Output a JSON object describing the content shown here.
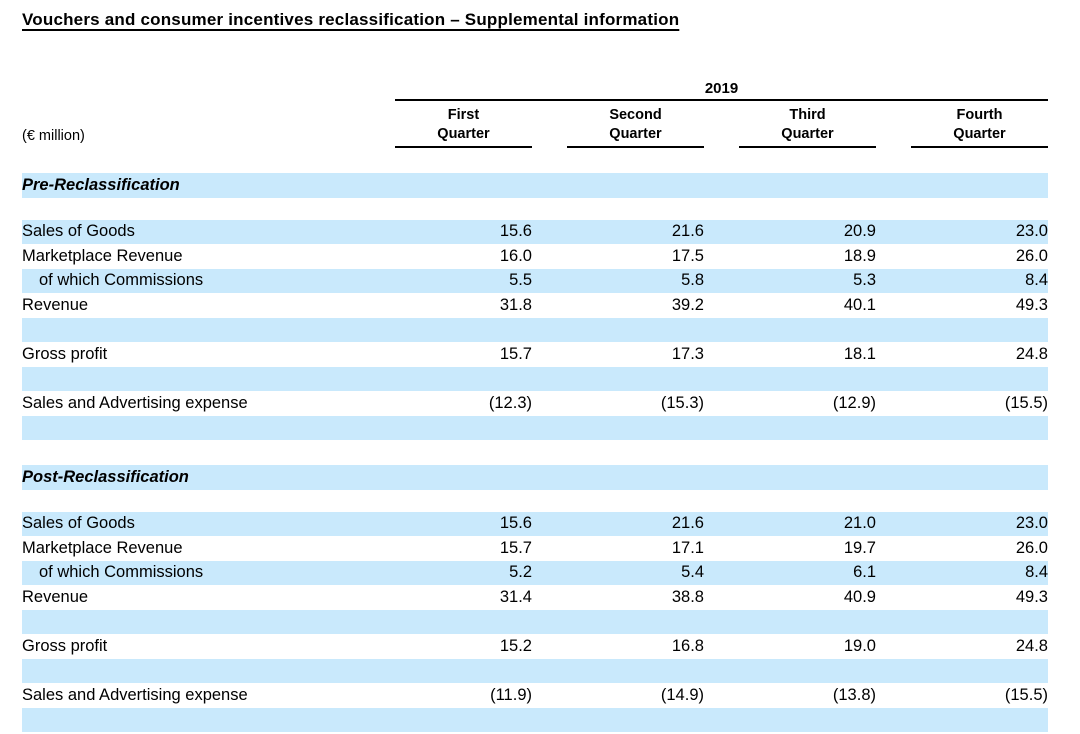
{
  "page": {
    "title": "Vouchers and consumer incentives reclassification – Supplemental information"
  },
  "header": {
    "unit": "(€ million)",
    "year": "2019",
    "columns": [
      {
        "line1": "First",
        "line2": "Quarter"
      },
      {
        "line1": "Second",
        "line2": "Quarter"
      },
      {
        "line1": "Third",
        "line2": "Quarter"
      },
      {
        "line1": "Fourth",
        "line2": "Quarter"
      }
    ]
  },
  "colors": {
    "row_highlight": "#c9e9fc"
  },
  "sections": [
    {
      "heading": "Pre-Reclassification",
      "rows": [
        {
          "label": "Sales of Goods",
          "indent": false,
          "bg": "blue",
          "values": [
            "15.6",
            "21.6",
            "20.9",
            "23.0"
          ]
        },
        {
          "label": "Marketplace Revenue",
          "indent": false,
          "bg": "white",
          "values": [
            "16.0",
            "17.5",
            "18.9",
            "26.0"
          ]
        },
        {
          "label": "of which Commissions",
          "indent": true,
          "bg": "blue",
          "values": [
            "5.5",
            "5.8",
            "5.3",
            "8.4"
          ]
        },
        {
          "label": "Revenue",
          "indent": false,
          "bg": "white",
          "values": [
            "31.8",
            "39.2",
            "40.1",
            "49.3"
          ]
        },
        {
          "blank": true,
          "bg": "blue"
        },
        {
          "label": "Gross profit",
          "indent": false,
          "bg": "white",
          "values": [
            "15.7",
            "17.3",
            "18.1",
            "24.8"
          ]
        },
        {
          "blank": true,
          "bg": "blue"
        },
        {
          "label": "Sales and Advertising expense",
          "indent": false,
          "bg": "white",
          "values": [
            "(12.3)",
            "(15.3)",
            "(12.9)",
            "(15.5)"
          ]
        },
        {
          "blank": true,
          "bg": "blue"
        }
      ]
    },
    {
      "heading": "Post-Reclassification",
      "rows": [
        {
          "label": "Sales of Goods",
          "indent": false,
          "bg": "blue",
          "values": [
            "15.6",
            "21.6",
            "21.0",
            "23.0"
          ]
        },
        {
          "label": "Marketplace Revenue",
          "indent": false,
          "bg": "white",
          "values": [
            "15.7",
            "17.1",
            "19.7",
            "26.0"
          ]
        },
        {
          "label": "of which Commissions",
          "indent": true,
          "bg": "blue",
          "values": [
            "5.2",
            "5.4",
            "6.1",
            "8.4"
          ]
        },
        {
          "label": "Revenue",
          "indent": false,
          "bg": "white",
          "values": [
            "31.4",
            "38.8",
            "40.9",
            "49.3"
          ]
        },
        {
          "blank": true,
          "bg": "blue"
        },
        {
          "label": "Gross profit",
          "indent": false,
          "bg": "white",
          "values": [
            "15.2",
            "16.8",
            "19.0",
            "24.8"
          ]
        },
        {
          "blank": true,
          "bg": "blue"
        },
        {
          "label": "Sales and Advertising expense",
          "indent": false,
          "bg": "white",
          "values": [
            "(11.9)",
            "(14.9)",
            "(13.8)",
            "(15.5)"
          ]
        },
        {
          "blank": true,
          "bg": "blue"
        }
      ]
    }
  ]
}
